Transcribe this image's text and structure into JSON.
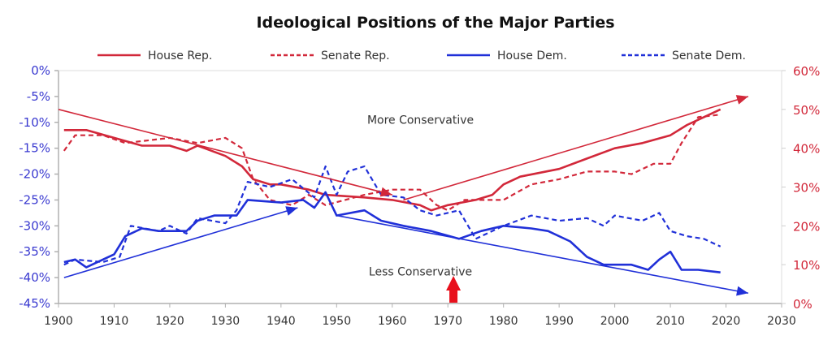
{
  "chart_data": {
    "type": "line",
    "title": "Ideological Positions of the Major Parties",
    "xlabel": "",
    "ylabel_left": "",
    "ylabel_right": "",
    "xlim": [
      1900,
      2030
    ],
    "ylim_left": [
      -45,
      0
    ],
    "ylim_right": [
      0,
      60
    ],
    "x_ticks": [
      "1900",
      "1910",
      "1920",
      "1930",
      "1940",
      "1950",
      "1960",
      "1970",
      "1980",
      "1990",
      "2000",
      "2010",
      "2020",
      "2030"
    ],
    "x_tick_values": [
      1900,
      1910,
      1920,
      1930,
      1940,
      1950,
      1960,
      1970,
      1980,
      1990,
      2000,
      2010,
      2020,
      2030
    ],
    "y_ticks_left": [
      "0%",
      "-5%",
      "-10%",
      "-15%",
      "-20%",
      "-25%",
      "-30%",
      "-35%",
      "-40%",
      "-45%"
    ],
    "y_tick_values_left": [
      0,
      -5,
      -10,
      -15,
      -20,
      -25,
      -30,
      -35,
      -40,
      -45
    ],
    "y_ticks_right": [
      "60%",
      "50%",
      "40%",
      "30%",
      "20%",
      "10%",
      "0%"
    ],
    "y_tick_values_right": [
      60,
      50,
      40,
      30,
      20,
      10,
      0
    ],
    "grid": false,
    "legend_position": "top",
    "colors": {
      "rep": "#d2283a",
      "dem": "#2030d8",
      "left_axis_text": "#3a3ad0",
      "right_axis_text": "#d2283a",
      "axis": "#b0b0b0"
    },
    "series": [
      {
        "name": "House Rep.",
        "color": "#d2283a",
        "dash": false,
        "axis": "left",
        "x": [
          1901,
          1905,
          1910,
          1915,
          1920,
          1923,
          1925,
          1930,
          1933,
          1935,
          1938,
          1940,
          1945,
          1948,
          1955,
          1960,
          1965,
          1967,
          1970,
          1975,
          1978,
          1980,
          1983,
          1990,
          1995,
          2000,
          2005,
          2010,
          2013,
          2016,
          2019
        ],
        "y": [
          -11.5,
          -11.5,
          -13,
          -14.5,
          -14.5,
          -15.5,
          -14.5,
          -16.5,
          -18.5,
          -21,
          -22,
          -22,
          -23,
          -24,
          -24.5,
          -25,
          -26,
          -27,
          -26,
          -25,
          -24,
          -22,
          -20.5,
          -19,
          -17,
          -15,
          -14,
          -12.5,
          -10.5,
          -9,
          -7.5
        ]
      },
      {
        "name": "Senate Rep.",
        "color": "#d2283a",
        "dash": true,
        "axis": "left",
        "x": [
          1901,
          1903,
          1908,
          1912,
          1920,
          1925,
          1930,
          1933,
          1935,
          1938,
          1942,
          1945,
          1948,
          1955,
          1960,
          1965,
          1968,
          1970,
          1973,
          1980,
          1985,
          1990,
          1995,
          2000,
          2003,
          2007,
          2010,
          2012,
          2015,
          2019
        ],
        "y": [
          -15.5,
          -12.5,
          -12.5,
          -14,
          -13,
          -14,
          -13,
          -15,
          -21,
          -25,
          -26,
          -24,
          -26,
          -24,
          -23,
          -23,
          -26,
          -27,
          -25,
          -25,
          -22,
          -21,
          -19.5,
          -19.5,
          -20,
          -18,
          -18,
          -14,
          -9,
          -8.5
        ]
      },
      {
        "name": "House Dem.",
        "color": "#2030d8",
        "dash": false,
        "axis": "left",
        "x": [
          1901,
          1903,
          1905,
          1908,
          1910,
          1912,
          1915,
          1918,
          1923,
          1925,
          1928,
          1932,
          1934,
          1940,
          1944,
          1946,
          1948,
          1950,
          1955,
          1958,
          1962,
          1967,
          1972,
          1976,
          1980,
          1985,
          1988,
          1992,
          1995,
          1998,
          2003,
          2006,
          2008,
          2010,
          2012,
          2015,
          2019
        ],
        "y": [
          -37,
          -36.5,
          -38,
          -36.5,
          -35.5,
          -32,
          -30.5,
          -31,
          -31,
          -29,
          -28,
          -28,
          -25,
          -25.5,
          -25,
          -26.5,
          -23.5,
          -28,
          -27,
          -29,
          -30,
          -31,
          -32.5,
          -31,
          -30,
          -30.5,
          -31,
          -33,
          -36,
          -37.5,
          -37.5,
          -38.5,
          -36.5,
          -35,
          -38.5,
          -38.5,
          -39
        ]
      },
      {
        "name": "Senate Dem.",
        "color": "#2030d8",
        "dash": true,
        "axis": "left",
        "x": [
          1901,
          1903,
          1908,
          1911,
          1913,
          1918,
          1920,
          1923,
          1925,
          1930,
          1932,
          1934,
          1938,
          1942,
          1946,
          1948,
          1950,
          1952,
          1955,
          1958,
          1962,
          1965,
          1968,
          1972,
          1975,
          1980,
          1985,
          1990,
          1995,
          1998,
          2000,
          2005,
          2008,
          2010,
          2013,
          2016,
          2019
        ],
        "y": [
          -37.5,
          -36.5,
          -37,
          -36,
          -30,
          -31,
          -30,
          -31.5,
          -28.5,
          -29.5,
          -27,
          -21.5,
          -22.5,
          -21,
          -24.5,
          -18.5,
          -24,
          -19.5,
          -18.5,
          -24,
          -24.5,
          -27,
          -28,
          -27,
          -32.5,
          -30,
          -28,
          -29,
          -28.5,
          -30,
          -28,
          -29,
          -27.5,
          -31,
          -32,
          -32.5,
          -34
        ]
      }
    ],
    "trend_arrows": [
      {
        "color": "#d2283a",
        "from": [
          1900,
          -7.5
        ],
        "to": [
          1960,
          -24
        ]
      },
      {
        "color": "#d2283a",
        "from": [
          1962,
          -25
        ],
        "to": [
          2024,
          -5
        ]
      },
      {
        "color": "#2030d8",
        "from": [
          1901,
          -40
        ],
        "to": [
          1943,
          -26.5
        ]
      },
      {
        "color": "#2030d8",
        "from": [
          1950,
          -28
        ],
        "to": [
          2024,
          -43
        ]
      }
    ],
    "annotations": [
      {
        "text": "More Conservative",
        "x": 1968,
        "y": -9.5
      },
      {
        "text": "Less Conservative",
        "x": 1968,
        "y": -38.8
      }
    ],
    "marker": {
      "type": "up-arrow",
      "color": "#e8101c",
      "x": 1971
    }
  }
}
